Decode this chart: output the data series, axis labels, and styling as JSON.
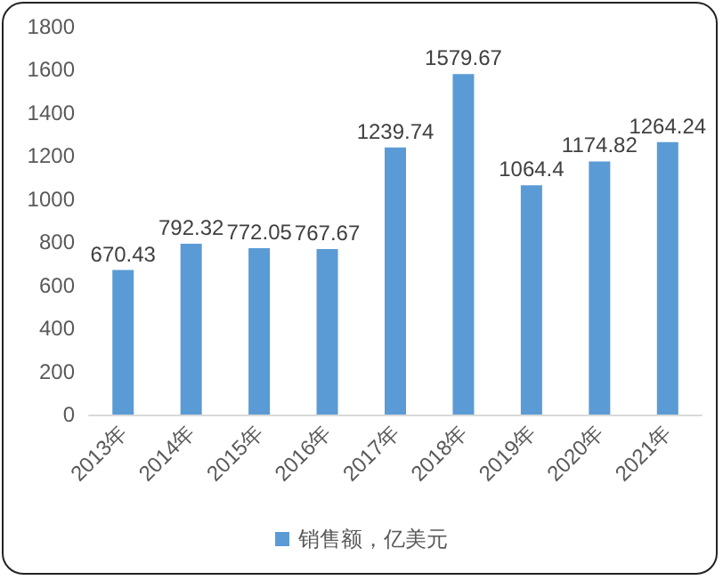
{
  "chart_data": {
    "type": "bar",
    "categories": [
      "2013年",
      "2014年",
      "2015年",
      "2016年",
      "2017年",
      "2018年",
      "2019年",
      "2020年",
      "2021年"
    ],
    "series": [
      {
        "name": "销售额，亿美元",
        "color": "#5b9bd5",
        "values": [
          670.43,
          792.32,
          772.05,
          767.67,
          1239.74,
          1579.67,
          1064.4,
          1174.82,
          1264.24
        ]
      }
    ],
    "ylim": [
      0,
      1800
    ],
    "yticks": [
      0,
      200,
      400,
      600,
      800,
      1000,
      1200,
      1400,
      1600,
      1800
    ],
    "grid": false,
    "legend": "bottom",
    "data_labels": true
  }
}
